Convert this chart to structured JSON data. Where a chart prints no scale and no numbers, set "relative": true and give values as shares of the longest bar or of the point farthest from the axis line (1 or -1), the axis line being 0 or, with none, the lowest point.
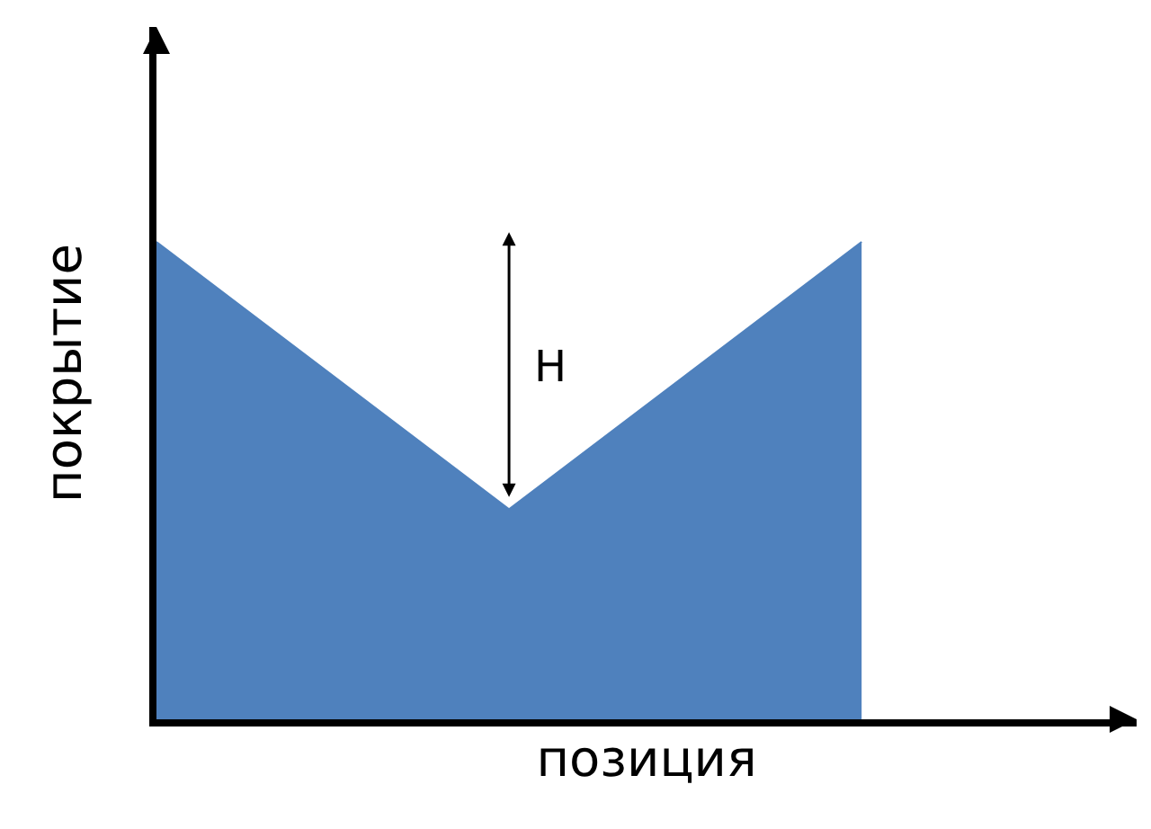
{
  "chart_data": {
    "type": "area",
    "relative": true,
    "categories": [
      null,
      null,
      null
    ],
    "series": [
      {
        "color": "#4f81bd",
        "values": [
          1,
          0.44,
          1
        ]
      }
    ],
    "xlabel": "позиция",
    "ylabel": "покрытие",
    "annotations": [
      "H"
    ],
    "legend": false,
    "tick_labels": false
  }
}
